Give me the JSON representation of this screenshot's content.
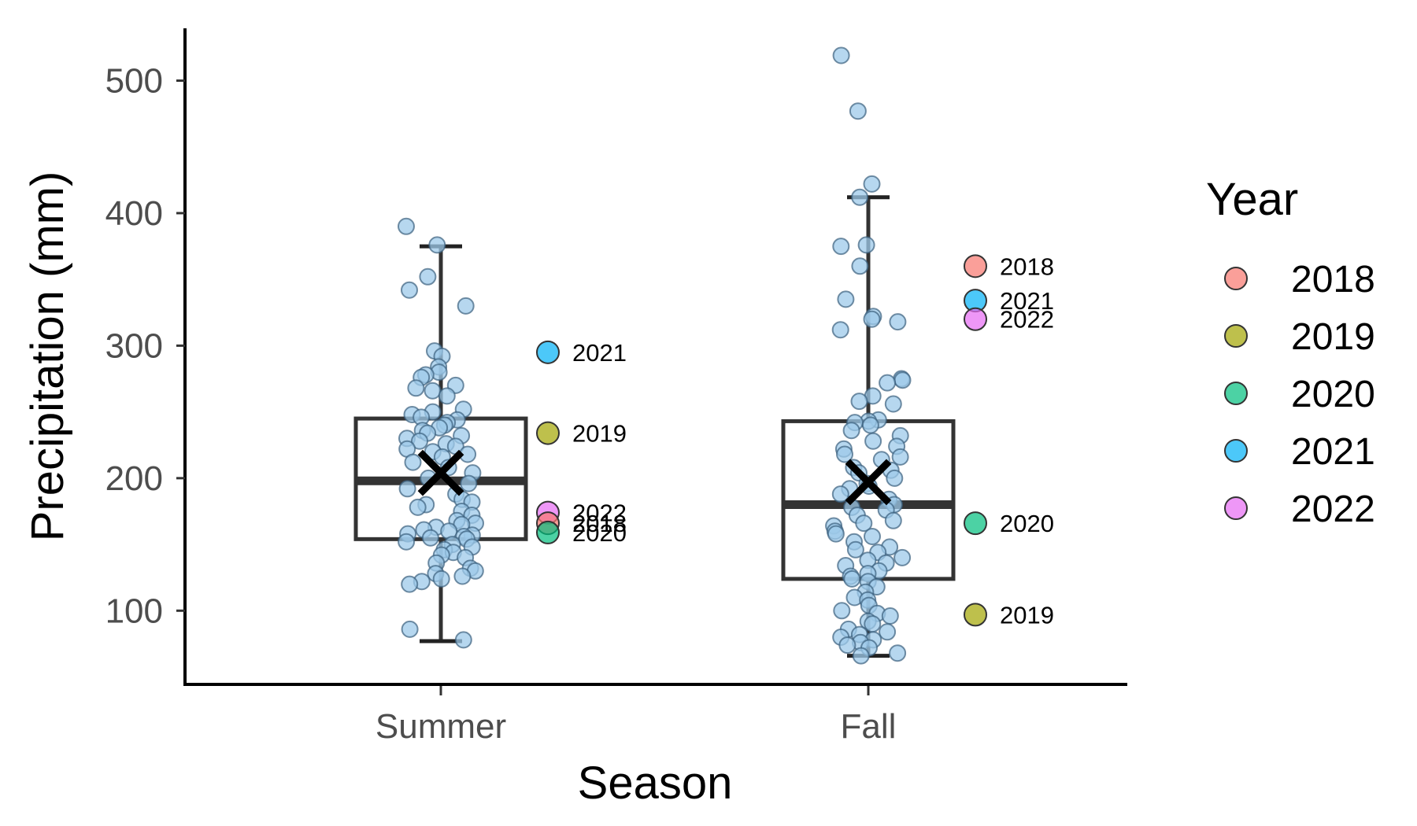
{
  "chart_data": {
    "type": "box",
    "xlabel": "Season",
    "ylabel": "Precipitation (mm)",
    "categories": [
      "Summer",
      "Fall"
    ],
    "ylim": [
      40,
      540
    ],
    "yticks": [
      100,
      200,
      300,
      400,
      500
    ],
    "grid": false,
    "boxes": [
      {
        "category": "Summer",
        "whisker_low": 77,
        "q1": 154,
        "median": 198,
        "q3": 245,
        "whisker_high": 375,
        "mean": 204
      },
      {
        "category": "Fall",
        "whisker_low": 66,
        "q1": 124,
        "median": 180,
        "q3": 243,
        "whisker_high": 412,
        "mean": 197
      }
    ],
    "observations": [
      {
        "category": "Summer",
        "values": [
          390,
          376,
          352,
          342,
          330,
          296,
          292,
          284,
          280,
          278,
          276,
          270,
          268,
          266,
          262,
          252,
          250,
          248,
          246,
          244,
          242,
          240,
          238,
          236,
          234,
          232,
          230,
          228,
          226,
          224,
          222,
          220,
          218,
          216,
          212,
          208,
          204,
          200,
          196,
          192,
          188,
          184,
          182,
          180,
          178,
          175,
          172,
          168,
          166,
          165,
          163,
          161,
          160,
          158,
          157,
          156,
          155,
          154,
          152,
          150,
          148,
          146,
          144,
          142,
          140,
          136,
          132,
          130,
          128,
          126,
          124,
          122,
          120,
          86,
          78
        ]
      },
      {
        "category": "Fall",
        "values": [
          519,
          477,
          422,
          412,
          376,
          375,
          360,
          335,
          322,
          320,
          318,
          312,
          275,
          274,
          272,
          262,
          258,
          256,
          244,
          243,
          242,
          240,
          236,
          232,
          228,
          224,
          222,
          218,
          216,
          214,
          208,
          206,
          204,
          200,
          196,
          194,
          192,
          188,
          184,
          180,
          178,
          176,
          172,
          168,
          166,
          164,
          160,
          158,
          156,
          152,
          148,
          146,
          144,
          140,
          138,
          136,
          134,
          130,
          128,
          126,
          124,
          122,
          118,
          114,
          110,
          108,
          104,
          100,
          98,
          96,
          92,
          90,
          86,
          84,
          82,
          80,
          78,
          76,
          74,
          72,
          68,
          66
        ]
      }
    ],
    "year_points": [
      {
        "category": "Summer",
        "year": "2021",
        "value": 295
      },
      {
        "category": "Summer",
        "year": "2019",
        "value": 234
      },
      {
        "category": "Summer",
        "year": "2022",
        "value": 174
      },
      {
        "category": "Summer",
        "year": "2018",
        "value": 166
      },
      {
        "category": "Summer",
        "year": "2020",
        "value": 159
      },
      {
        "category": "Fall",
        "year": "2018",
        "value": 360
      },
      {
        "category": "Fall",
        "year": "2021",
        "value": 334
      },
      {
        "category": "Fall",
        "year": "2022",
        "value": 320
      },
      {
        "category": "Fall",
        "year": "2020",
        "value": 166
      },
      {
        "category": "Fall",
        "year": "2019",
        "value": 97
      }
    ],
    "legend": {
      "title": "Year",
      "position": "right",
      "entries": [
        {
          "label": "2018",
          "color": "#F8766D"
        },
        {
          "label": "2019",
          "color": "#A3A500"
        },
        {
          "label": "2020",
          "color": "#00BF7D"
        },
        {
          "label": "2021",
          "color": "#00B0F6"
        },
        {
          "label": "2022",
          "color": "#E76BF3"
        }
      ]
    },
    "colors": {
      "observation_fill": "#9ECAE9",
      "observation_stroke": "#3a5f7d",
      "box_stroke": "#333333",
      "mean_marker": "#000000"
    }
  }
}
